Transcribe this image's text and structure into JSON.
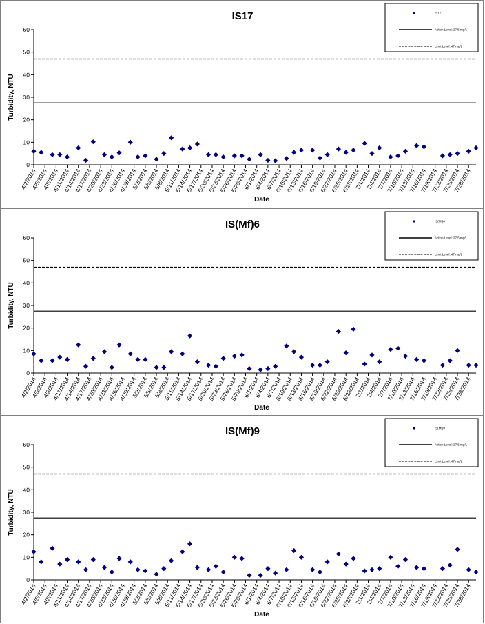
{
  "chart_data": [
    {
      "type": "scatter",
      "title": "IS17",
      "xlabel": "Date",
      "ylabel": "Turbidity, NTU",
      "ylim": [
        0,
        60
      ],
      "yticks": [
        0,
        10,
        20,
        30,
        40,
        50,
        60
      ],
      "xlim": [
        "4/2/2014",
        "7/30/2014"
      ],
      "xticks": [
        "4/2/2014",
        "4/5/2014",
        "4/8/2014",
        "4/11/2014",
        "4/14/2014",
        "4/17/2014",
        "4/20/2014",
        "4/23/2014",
        "4/26/2014",
        "4/29/2014",
        "5/2/2014",
        "5/5/2014",
        "5/8/2014",
        "5/11/2014",
        "5/14/2014",
        "5/17/2014",
        "5/20/2014",
        "5/23/2014",
        "5/26/2014",
        "5/29/2014",
        "6/1/2014",
        "6/4/2014",
        "6/7/2014",
        "6/10/2014",
        "6/13/2014",
        "6/16/2014",
        "6/19/2014",
        "6/22/2014",
        "6/25/2014",
        "6/28/2014",
        "7/1/2014",
        "7/4/2014",
        "7/7/2014",
        "7/10/2014",
        "7/13/2014",
        "7/16/2014",
        "7/19/2014",
        "7/22/2014",
        "7/25/2014",
        "7/28/2014"
      ],
      "legend_position": "top-right",
      "grid": false,
      "marker_color": "#000080",
      "series": [
        {
          "name": "IS17",
          "kind": "points",
          "x": [
            "4/2/2014",
            "4/4/2014",
            "4/7/2014",
            "4/9/2014",
            "4/11/2014",
            "4/14/2014",
            "4/16/2014",
            "4/18/2014",
            "4/21/2014",
            "4/23/2014",
            "4/25/2014",
            "4/28/2014",
            "4/30/2014",
            "5/2/2014",
            "5/5/2014",
            "5/7/2014",
            "5/9/2014",
            "5/12/2014",
            "5/14/2014",
            "5/16/2014",
            "5/19/2014",
            "5/21/2014",
            "5/23/2014",
            "5/26/2014",
            "5/28/2014",
            "5/30/2014",
            "6/2/2014",
            "6/4/2014",
            "6/6/2014",
            "6/9/2014",
            "6/11/2014",
            "6/13/2014",
            "6/16/2014",
            "6/18/2014",
            "6/20/2014",
            "6/23/2014",
            "6/25/2014",
            "6/27/2014",
            "6/30/2014",
            "7/2/2014",
            "7/4/2014",
            "7/7/2014",
            "7/9/2014",
            "7/11/2014",
            "7/14/2014",
            "7/16/2014",
            "7/21/2014",
            "7/23/2014",
            "7/25/2014",
            "7/28/2014",
            "7/30/2014"
          ],
          "y": [
            6,
            5.5,
            4.5,
            4.5,
            3.5,
            7.5,
            2,
            10.2,
            4.5,
            3.5,
            5.3,
            10,
            3.5,
            4,
            2.5,
            5,
            12,
            7,
            7.5,
            9.2,
            4.5,
            4.5,
            3.5,
            4,
            4,
            2.5,
            4.5,
            2,
            1.8,
            2.8,
            5.5,
            6.5,
            6.5,
            3,
            4.5,
            7,
            5.5,
            6.5,
            9.5,
            5,
            7.5,
            3.5,
            4,
            6,
            8.5,
            8,
            4,
            4.5,
            5,
            6,
            7.5
          ]
        },
        {
          "name": "Action Level: 27.5 mg/L",
          "kind": "hline",
          "value": 27.5
        },
        {
          "name": "Limit Level: 47 mg/L",
          "kind": "hline",
          "value": 47,
          "dashed": true
        }
      ]
    },
    {
      "type": "scatter",
      "title": "IS(Mf)6",
      "xlabel": "Date",
      "ylabel": "Turbidity, NTU",
      "ylim": [
        0,
        60
      ],
      "yticks": [
        0,
        10,
        20,
        30,
        40,
        50,
        60
      ],
      "xlim": [
        "4/2/2014",
        "7/30/2014"
      ],
      "xticks": [
        "4/2/2014",
        "4/5/2014",
        "4/8/2014",
        "4/11/2014",
        "4/14/2014",
        "4/17/2014",
        "4/20/2014",
        "4/23/2014",
        "4/26/2014",
        "4/29/2014",
        "5/2/2014",
        "5/5/2014",
        "5/8/2014",
        "5/11/2014",
        "5/14/2014",
        "5/17/2014",
        "5/20/2014",
        "5/23/2014",
        "5/26/2014",
        "5/29/2014",
        "6/1/2014",
        "6/4/2014",
        "6/7/2014",
        "6/10/2014",
        "6/13/2014",
        "6/16/2014",
        "6/19/2014",
        "6/22/2014",
        "6/25/2014",
        "6/28/2014",
        "7/1/2014",
        "7/4/2014",
        "7/7/2014",
        "7/10/2014",
        "7/13/2014",
        "7/16/2014",
        "7/19/2014",
        "7/22/2014",
        "7/25/2014",
        "7/28/2014"
      ],
      "legend_position": "top-right",
      "grid": false,
      "marker_color": "#000080",
      "series": [
        {
          "name": "IS(Mf)6",
          "kind": "points",
          "x": [
            "4/2/2014",
            "4/4/2014",
            "4/7/2014",
            "4/9/2014",
            "4/11/2014",
            "4/14/2014",
            "4/16/2014",
            "4/18/2014",
            "4/21/2014",
            "4/23/2014",
            "4/25/2014",
            "4/28/2014",
            "4/30/2014",
            "5/2/2014",
            "5/5/2014",
            "5/7/2014",
            "5/9/2014",
            "5/12/2014",
            "5/14/2014",
            "5/16/2014",
            "5/19/2014",
            "5/21/2014",
            "5/23/2014",
            "5/26/2014",
            "5/28/2014",
            "5/30/2014",
            "6/2/2014",
            "6/4/2014",
            "6/6/2014",
            "6/9/2014",
            "6/11/2014",
            "6/13/2014",
            "6/16/2014",
            "6/18/2014",
            "6/20/2014",
            "6/23/2014",
            "6/25/2014",
            "6/27/2014",
            "6/30/2014",
            "7/2/2014",
            "7/4/2014",
            "7/7/2014",
            "7/9/2014",
            "7/11/2014",
            "7/14/2014",
            "7/16/2014",
            "7/21/2014",
            "7/23/2014",
            "7/25/2014",
            "7/28/2014",
            "7/30/2014"
          ],
          "y": [
            8.5,
            5.5,
            5.5,
            7,
            6,
            12.5,
            3,
            6.5,
            9.5,
            2.5,
            12.5,
            8.5,
            6,
            6,
            2.5,
            2.5,
            9.5,
            8.5,
            16.5,
            5,
            3.5,
            3,
            6.5,
            7.5,
            8,
            2,
            1.5,
            2,
            3,
            12,
            9.5,
            7,
            3.5,
            3.5,
            5,
            18.5,
            9,
            19.5,
            4,
            8,
            5,
            10.5,
            11,
            7.5,
            6,
            5.5,
            3.5,
            5.5,
            10,
            3.5,
            3.5
          ]
        },
        {
          "name": "Action Level: 27.5 mg/L",
          "kind": "hline",
          "value": 27.5
        },
        {
          "name": "Limit Level: 47 mg/L",
          "kind": "hline",
          "value": 47,
          "dashed": true
        }
      ]
    },
    {
      "type": "scatter",
      "title": "IS(Mf)9",
      "xlabel": "Date",
      "ylabel": "Turbidity, NTU",
      "ylim": [
        0,
        60
      ],
      "yticks": [
        0,
        10,
        20,
        30,
        40,
        50,
        60
      ],
      "xlim": [
        "4/2/2014",
        "7/30/2014"
      ],
      "xticks": [
        "4/2/2014",
        "4/5/2014",
        "4/8/2014",
        "4/11/2014",
        "4/14/2014",
        "4/17/2014",
        "4/20/2014",
        "4/23/2014",
        "4/26/2014",
        "4/29/2014",
        "5/2/2014",
        "5/5/2014",
        "5/8/2014",
        "5/11/2014",
        "5/14/2014",
        "5/17/2014",
        "5/20/2014",
        "5/23/2014",
        "5/26/2014",
        "5/29/2014",
        "6/1/2014",
        "6/4/2014",
        "6/7/2014",
        "6/10/2014",
        "6/13/2014",
        "6/16/2014",
        "6/19/2014",
        "6/22/2014",
        "6/25/2014",
        "6/28/2014",
        "7/1/2014",
        "7/4/2014",
        "7/7/2014",
        "7/10/2014",
        "7/13/2014",
        "7/16/2014",
        "7/19/2014",
        "7/22/2014",
        "7/25/2014",
        "7/28/2014"
      ],
      "legend_position": "top-right",
      "grid": false,
      "marker_color": "#000080",
      "series": [
        {
          "name": "IS(Mf)9",
          "kind": "points",
          "x": [
            "4/2/2014",
            "4/4/2014",
            "4/7/2014",
            "4/9/2014",
            "4/11/2014",
            "4/14/2014",
            "4/16/2014",
            "4/18/2014",
            "4/21/2014",
            "4/23/2014",
            "4/25/2014",
            "4/28/2014",
            "4/30/2014",
            "5/2/2014",
            "5/5/2014",
            "5/7/2014",
            "5/9/2014",
            "5/12/2014",
            "5/14/2014",
            "5/16/2014",
            "5/19/2014",
            "5/21/2014",
            "5/23/2014",
            "5/26/2014",
            "5/28/2014",
            "5/30/2014",
            "6/2/2014",
            "6/4/2014",
            "6/6/2014",
            "6/9/2014",
            "6/11/2014",
            "6/13/2014",
            "6/16/2014",
            "6/18/2014",
            "6/20/2014",
            "6/23/2014",
            "6/25/2014",
            "6/27/2014",
            "6/30/2014",
            "7/2/2014",
            "7/4/2014",
            "7/7/2014",
            "7/9/2014",
            "7/11/2014",
            "7/14/2014",
            "7/16/2014",
            "7/21/2014",
            "7/23/2014",
            "7/25/2014",
            "7/28/2014",
            "7/30/2014"
          ],
          "y": [
            12.5,
            8,
            14,
            7,
            9,
            8,
            4.5,
            9,
            5.5,
            3.5,
            9.5,
            8,
            4.5,
            4,
            2.5,
            5,
            8.5,
            12.5,
            16,
            5.5,
            4.5,
            6,
            3.5,
            10,
            9.5,
            2,
            2,
            5,
            3,
            4.5,
            13,
            10,
            4.5,
            3.5,
            8,
            11.5,
            7,
            9.5,
            4,
            4.5,
            5,
            10,
            6,
            9,
            5.5,
            5,
            5,
            6.5,
            13.5,
            4.5,
            3.5
          ]
        },
        {
          "name": "Action Level: 27.5 mg/L",
          "kind": "hline",
          "value": 27.5
        },
        {
          "name": "Limit Level: 47 mg/L",
          "kind": "hline",
          "value": 47,
          "dashed": true
        }
      ]
    }
  ]
}
